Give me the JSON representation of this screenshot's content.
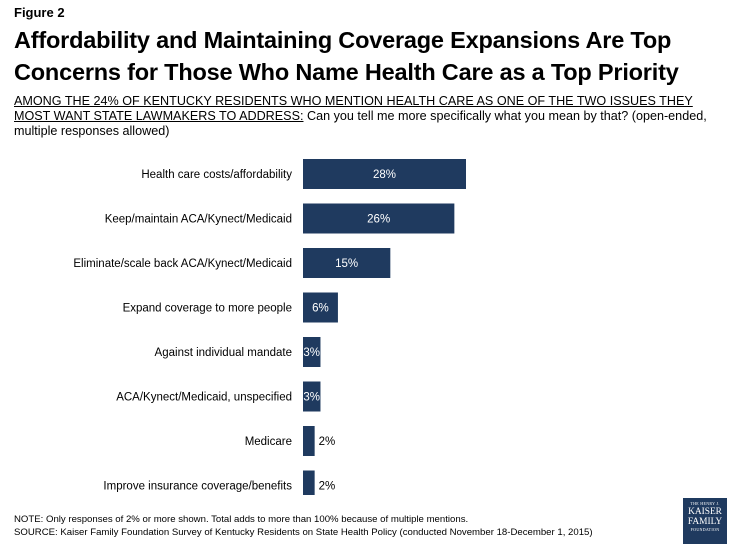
{
  "figure_label": "Figure 2",
  "title": "Affordability and Maintaining Coverage Expansions Are Top Concerns for Those Who Name Health Care as a Top Priority",
  "subtitle_lead": "AMONG THE 24% OF KENTUCKY RESIDENTS WHO MENTION HEALTH CARE AS ONE OF THE TWO ISSUES THEY MOST WANT STATE LAWMAKERS TO ADDRESS:",
  "subtitle_question": " Can you tell me more specifically what you mean by that? (open-ended, multiple responses allowed)",
  "chart_data": {
    "type": "bar",
    "orientation": "horizontal",
    "categories": [
      "Health care costs/affordability",
      "Keep/maintain ACA/Kynect/Medicaid",
      "Eliminate/scale back ACA/Kynect/Medicaid",
      "Expand coverage to more people",
      "Against individual mandate",
      "ACA/Kynect/Medicaid, unspecified",
      "Medicare",
      "Improve insurance coverage/benefits"
    ],
    "values": [
      28,
      26,
      15,
      6,
      3,
      3,
      2,
      2
    ],
    "labels": [
      "28%",
      "26%",
      "15%",
      "6%",
      "3%",
      "3%",
      "2%",
      "2%"
    ],
    "unit": "%",
    "xlim": [
      0,
      28
    ],
    "bar_color": "#1f3a5f"
  },
  "footer": {
    "note": "NOTE: Only responses of 2% or more shown. Total adds to more than 100% because of multiple mentions.",
    "source": "SOURCE: Kaiser Family Foundation Survey of Kentucky Residents on State Health Policy (conducted November 18-December 1, 2015)"
  },
  "logo": {
    "line1": "THE HENRY J.",
    "line2": "KAISER",
    "line3": "FAMILY",
    "line4": "FOUNDATION"
  }
}
